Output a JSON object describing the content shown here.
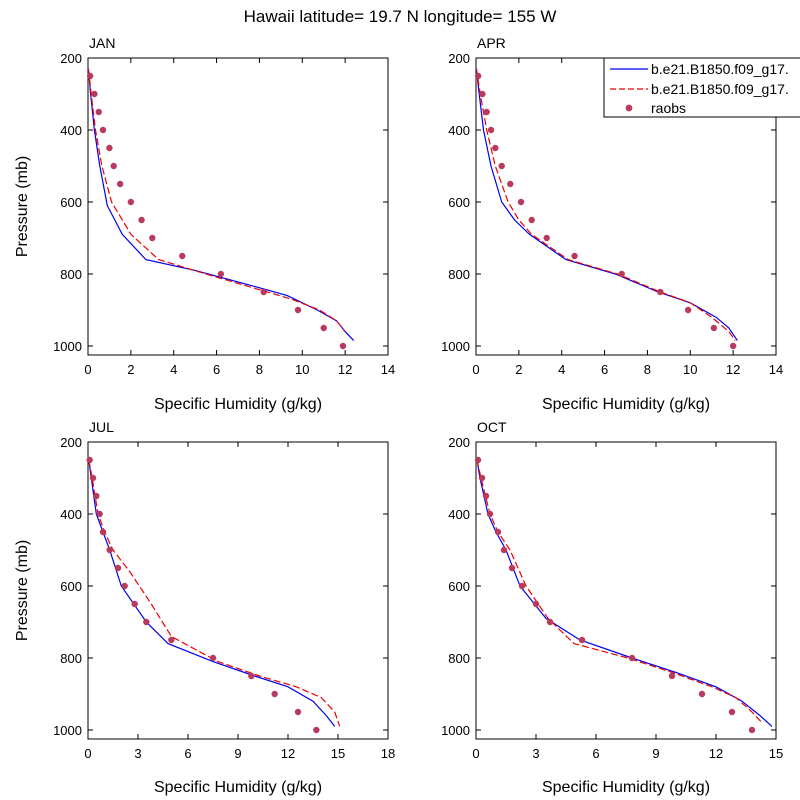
{
  "figure": {
    "title": "Hawaii  latitude= 19.7 N longitude= 155 W"
  },
  "legend": {
    "placement": "top-right of APR panel",
    "entries": [
      {
        "label": "b.e21.B1850.f09_g17.",
        "style": "solid",
        "color": "#0000ee"
      },
      {
        "label": "b.e21.B1850.f09_g17.",
        "style": "dashed",
        "color": "#ee0000"
      },
      {
        "label": "raobs",
        "style": "marker",
        "color": "#b83a5c"
      }
    ]
  },
  "colors": {
    "model1": "#0000ee",
    "model2": "#ee0000",
    "raobs": "#b83a5c"
  },
  "chart_data": [
    {
      "type": "line",
      "panel": "JAN",
      "title": "JAN",
      "xlabel": "Specific Humidity (g/kg)",
      "ylabel": "Pressure (mb)",
      "xlim": [
        0,
        14
      ],
      "ylim": [
        200,
        1025
      ],
      "y_inverted": true,
      "xticks": [
        0,
        2,
        4,
        6,
        8,
        10,
        12,
        14
      ],
      "yticks": [
        200,
        400,
        600,
        800,
        1000
      ],
      "series": [
        {
          "name": "b.e21.B1850.f09_g17.",
          "style": "solid",
          "x": [
            0.02,
            0.12,
            0.3,
            0.55,
            0.9,
            1.6,
            2.7,
            5.0,
            7.5,
            9.3,
            10.7,
            11.6,
            12.0,
            12.4
          ],
          "y": [
            230,
            300,
            400,
            500,
            610,
            690,
            760,
            790,
            830,
            860,
            900,
            930,
            960,
            985
          ]
        },
        {
          "name": "b.e21.B1850.f09_g17.",
          "style": "dashed",
          "x": [
            0.02,
            0.15,
            0.35,
            0.65,
            1.1,
            2.0,
            3.3,
            5.5,
            7.8,
            9.5,
            10.8,
            11.6,
            12.0
          ],
          "y": [
            230,
            300,
            400,
            500,
            600,
            690,
            760,
            800,
            840,
            870,
            900,
            930,
            960
          ]
        },
        {
          "name": "raobs",
          "style": "marker",
          "x": [
            0.1,
            0.3,
            0.5,
            0.7,
            1.0,
            1.2,
            1.5,
            2.0,
            2.5,
            3.0,
            4.4,
            6.2,
            8.2,
            9.8,
            11.0,
            11.9
          ],
          "y": [
            250,
            300,
            350,
            400,
            450,
            500,
            550,
            600,
            650,
            700,
            750,
            800,
            850,
            900,
            950,
            1000
          ]
        }
      ]
    },
    {
      "type": "line",
      "panel": "APR",
      "title": "APR",
      "xlabel": "Specific Humidity (g/kg)",
      "ylabel": "",
      "xlim": [
        0,
        14
      ],
      "ylim": [
        200,
        1025
      ],
      "y_inverted": true,
      "xticks": [
        0,
        2,
        4,
        6,
        8,
        10,
        12,
        14
      ],
      "yticks": [
        200,
        400,
        600,
        800,
        1000
      ],
      "series": [
        {
          "name": "b.e21.B1850.f09_g17.",
          "style": "solid",
          "x": [
            0.02,
            0.15,
            0.35,
            0.7,
            1.2,
            1.8,
            2.5,
            4.2,
            6.5,
            8.5,
            10.0,
            11.2,
            11.8,
            12.2
          ],
          "y": [
            230,
            300,
            400,
            500,
            600,
            650,
            690,
            760,
            800,
            850,
            880,
            920,
            950,
            985
          ]
        },
        {
          "name": "b.e21.B1850.f09_g17.",
          "style": "dashed",
          "x": [
            0.02,
            0.2,
            0.5,
            0.9,
            1.5,
            2.0,
            2.6,
            4.3,
            6.6,
            8.6,
            10.0,
            11.0,
            11.8,
            12.1
          ],
          "y": [
            230,
            300,
            400,
            500,
            600,
            650,
            690,
            760,
            800,
            850,
            880,
            920,
            960,
            985
          ]
        },
        {
          "name": "raobs",
          "style": "marker",
          "x": [
            0.1,
            0.3,
            0.5,
            0.7,
            0.9,
            1.2,
            1.6,
            2.1,
            2.6,
            3.3,
            4.6,
            6.8,
            8.6,
            9.9,
            11.1,
            12.0
          ],
          "y": [
            250,
            300,
            350,
            400,
            450,
            500,
            550,
            600,
            650,
            700,
            750,
            800,
            850,
            900,
            950,
            1000
          ]
        }
      ]
    },
    {
      "type": "line",
      "panel": "JUL",
      "title": "JUL",
      "xlabel": "Specific Humidity (g/kg)",
      "ylabel": "Pressure (mb)",
      "xlim": [
        0,
        18
      ],
      "ylim": [
        200,
        1025
      ],
      "y_inverted": true,
      "xticks": [
        0,
        3,
        6,
        9,
        12,
        15,
        18
      ],
      "yticks": [
        200,
        400,
        600,
        800,
        1000
      ],
      "series": [
        {
          "name": "b.e21.B1850.f09_g17.",
          "style": "solid",
          "x": [
            0.05,
            0.2,
            0.5,
            0.9,
            1.3,
            2.0,
            3.5,
            4.8,
            7.5,
            10.0,
            12.0,
            13.5,
            14.3,
            14.8
          ],
          "y": [
            250,
            300,
            400,
            450,
            500,
            600,
            700,
            760,
            810,
            850,
            880,
            920,
            960,
            990
          ]
        },
        {
          "name": "b.e21.B1850.f09_g17.",
          "style": "dashed",
          "x": [
            0.05,
            0.25,
            0.6,
            1.0,
            1.5,
            2.5,
            3.8,
            5.0,
            7.8,
            10.3,
            12.5,
            14.0,
            14.8,
            15.1
          ],
          "y": [
            250,
            300,
            400,
            450,
            500,
            560,
            650,
            740,
            810,
            850,
            880,
            910,
            950,
            990
          ]
        },
        {
          "name": "raobs",
          "style": "marker",
          "x": [
            0.1,
            0.3,
            0.5,
            0.7,
            0.9,
            1.3,
            1.8,
            2.2,
            2.8,
            3.5,
            5.0,
            7.5,
            9.8,
            11.2,
            12.6,
            13.7
          ],
          "y": [
            250,
            300,
            350,
            400,
            450,
            500,
            550,
            600,
            650,
            700,
            750,
            800,
            850,
            900,
            950,
            1000
          ]
        }
      ]
    },
    {
      "type": "line",
      "panel": "OCT",
      "title": "OCT",
      "xlabel": "Specific Humidity (g/kg)",
      "ylabel": "",
      "xlim": [
        0,
        15
      ],
      "ylim": [
        200,
        1025
      ],
      "y_inverted": true,
      "xticks": [
        0,
        3,
        6,
        9,
        12,
        15
      ],
      "yticks": [
        200,
        400,
        600,
        800,
        1000
      ],
      "series": [
        {
          "name": "b.e21.B1850.f09_g17.",
          "style": "solid",
          "x": [
            0.05,
            0.2,
            0.6,
            1.0,
            1.5,
            2.2,
            3.5,
            5.2,
            7.8,
            10.0,
            12.0,
            13.3,
            14.2,
            14.8
          ],
          "y": [
            250,
            300,
            400,
            450,
            500,
            600,
            690,
            750,
            800,
            840,
            880,
            920,
            960,
            990
          ]
        },
        {
          "name": "b.e21.B1850.f09_g17.",
          "style": "dashed",
          "x": [
            0.05,
            0.25,
            0.7,
            1.1,
            1.7,
            2.5,
            3.6,
            4.9,
            7.6,
            9.8,
            11.8,
            13.0,
            13.8,
            14.3
          ],
          "y": [
            250,
            300,
            400,
            450,
            500,
            600,
            690,
            760,
            800,
            840,
            880,
            910,
            950,
            980
          ]
        },
        {
          "name": "raobs",
          "style": "marker",
          "x": [
            0.1,
            0.3,
            0.5,
            0.7,
            1.1,
            1.4,
            1.8,
            2.3,
            3.0,
            3.7,
            5.3,
            7.8,
            9.8,
            11.3,
            12.8,
            13.8
          ],
          "y": [
            250,
            300,
            350,
            400,
            450,
            500,
            550,
            600,
            650,
            700,
            750,
            800,
            850,
            900,
            950,
            1000
          ]
        }
      ]
    }
  ]
}
